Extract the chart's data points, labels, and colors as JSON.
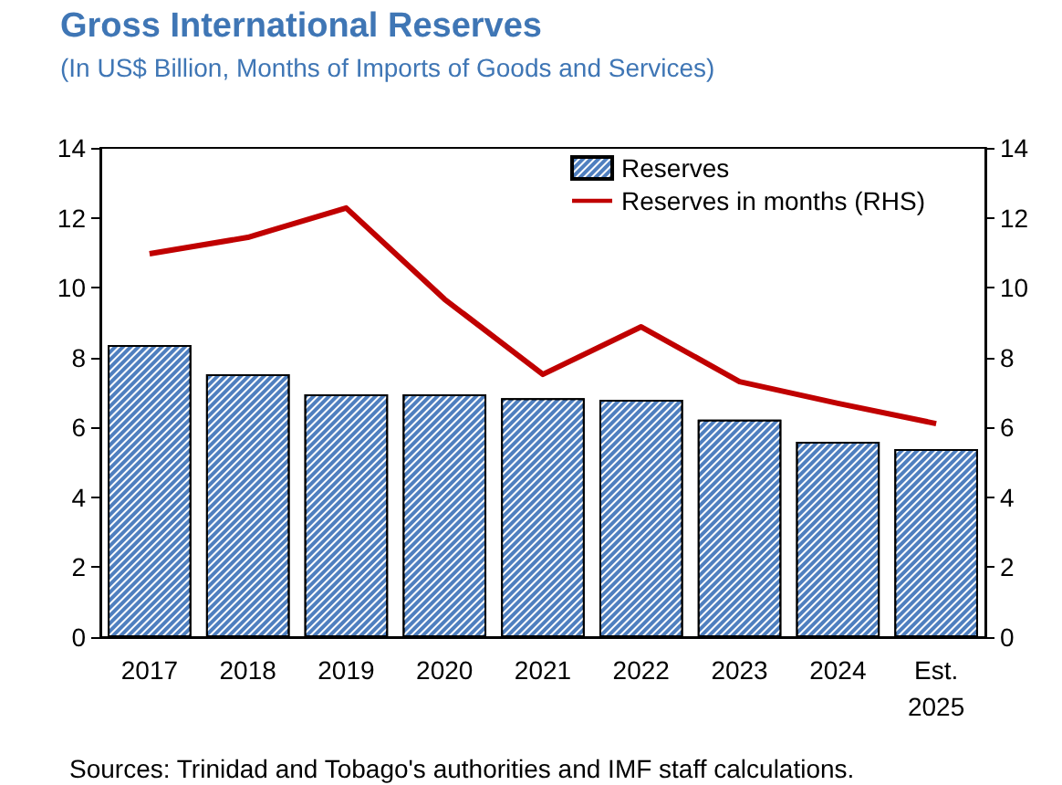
{
  "chart_data": {
    "type": "bar",
    "title": "Gross International Reserves",
    "subtitle": "(In US$ Billion, Months of Imports of Goods and Services)",
    "categories": [
      "2017",
      "2018",
      "2019",
      "2020",
      "2021",
      "2022",
      "2023",
      "2024",
      "Est.\n2025"
    ],
    "series": [
      {
        "name": "Reserves",
        "color": "#4f7fbf",
        "values": [
          8.36,
          7.52,
          6.95,
          6.95,
          6.84,
          6.79,
          6.22,
          5.59,
          5.38
        ]
      },
      {
        "name": "Reserves in months (RHS)",
        "type": "line",
        "axis": "y2",
        "color": "#c00000",
        "values": [
          10.97,
          11.44,
          12.28,
          9.67,
          7.52,
          8.88,
          7.31,
          6.69,
          6.11
        ]
      }
    ],
    "ylim": [
      0,
      14
    ],
    "yticks": [
      0,
      2,
      4,
      6,
      8,
      10,
      12,
      14
    ],
    "y2lim": [
      0,
      14
    ],
    "y2ticks": [
      0,
      2,
      4,
      6,
      8,
      10,
      12,
      14
    ],
    "legend": "top right",
    "grid": false,
    "marker": "none",
    "annotations": [
      "Sources: Trinidad and Tobago's authorities and IMF staff calculations."
    ]
  }
}
